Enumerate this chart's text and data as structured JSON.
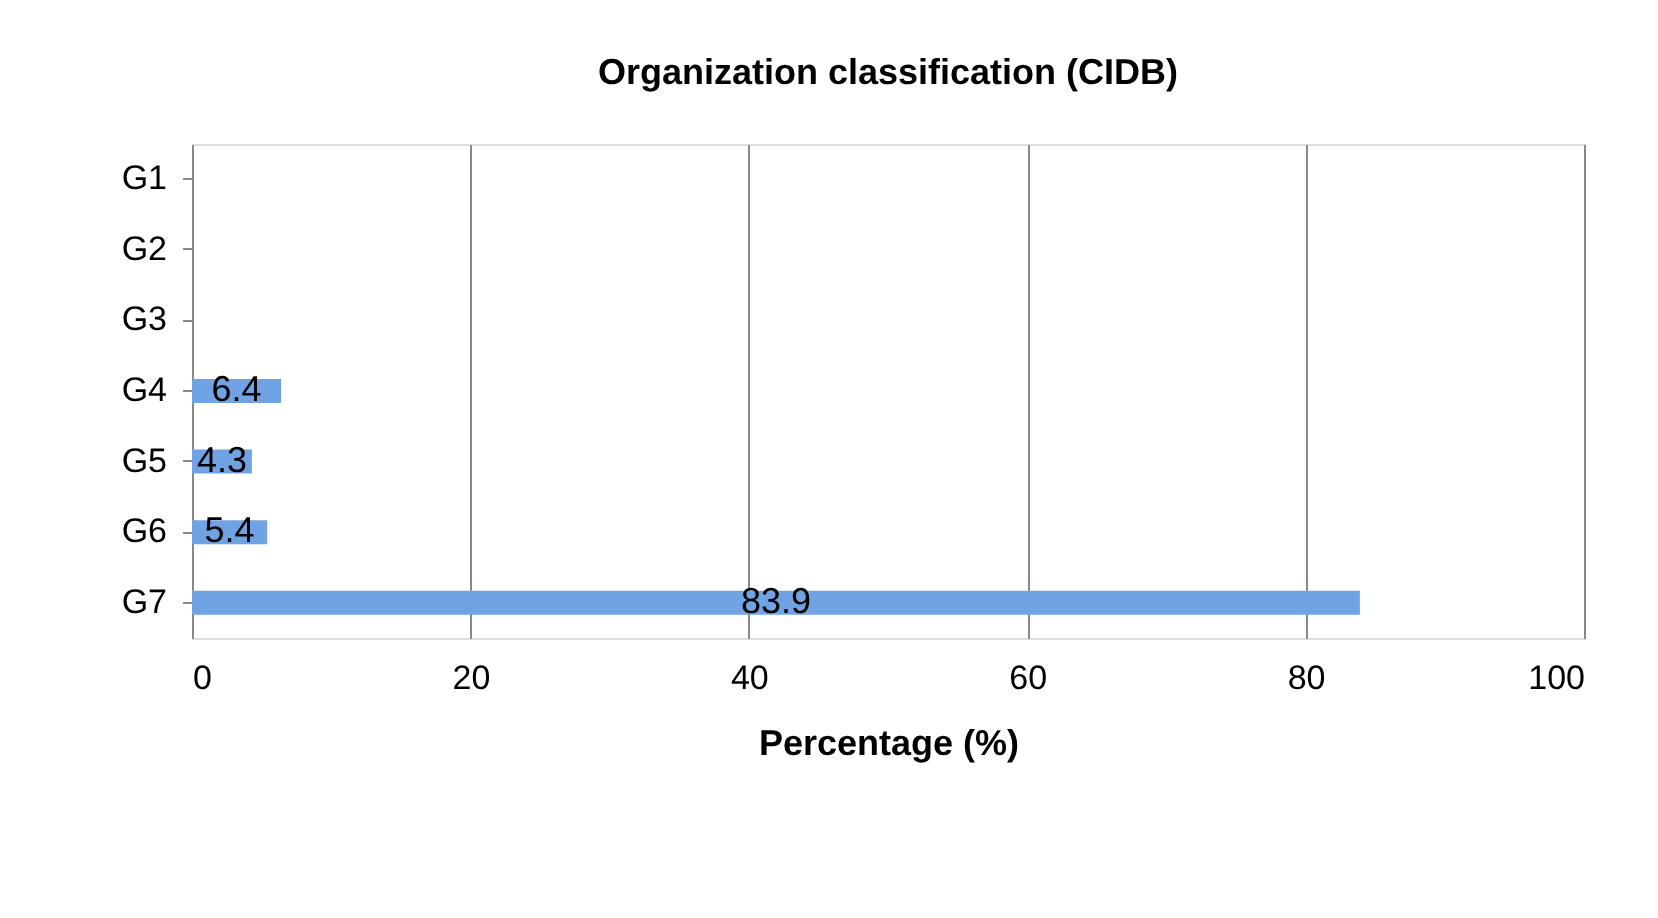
{
  "chart_data": {
    "type": "bar",
    "orientation": "horizontal",
    "title": "Organization classification (CIDB)",
    "xlabel": "Percentage (%)",
    "categories": [
      "G1",
      "G2",
      "G3",
      "G4",
      "G5",
      "G6",
      "G7"
    ],
    "values": [
      null,
      null,
      null,
      6.4,
      4.3,
      5.4,
      83.9
    ],
    "color": "#6fa3e3",
    "xlim": [
      0,
      100
    ],
    "xticks": [
      0,
      20,
      40,
      60,
      80,
      100
    ],
    "grid": "x",
    "data_labels": true
  }
}
